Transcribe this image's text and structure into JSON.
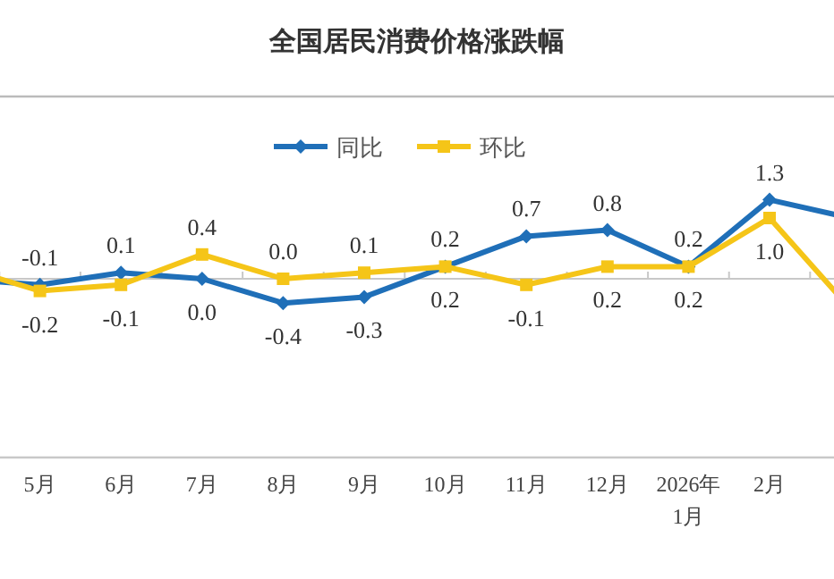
{
  "chart_data": {
    "type": "line",
    "title": "全国居民消费价格涨跌幅",
    "categories": [
      null,
      "5月",
      "6月",
      "7月",
      "8月",
      "9月",
      "10月",
      "11月",
      "12月",
      "2026年\n1月",
      "2月",
      null
    ],
    "series": [
      {
        "name": "同比",
        "color": "#1f6fb8",
        "marker": "diamond",
        "values": [
          0.0,
          -0.1,
          0.1,
          0.0,
          -0.4,
          -0.3,
          0.2,
          0.7,
          0.8,
          0.2,
          1.3,
          1.0
        ],
        "value_labels": [
          null,
          "-0.1",
          "0.1",
          "0.0",
          "-0.4",
          "-0.3",
          "0.2",
          "0.7",
          "0.8",
          "0.2",
          "1.3",
          null
        ]
      },
      {
        "name": "环比",
        "color": "#f5c518",
        "marker": "square",
        "values": [
          0.2,
          -0.2,
          -0.1,
          0.4,
          0.0,
          0.1,
          0.2,
          -0.1,
          0.2,
          0.2,
          1.0,
          -0.5
        ],
        "value_labels": [
          null,
          "-0.2",
          "-0.1",
          "0.4",
          "0.0",
          "0.1",
          "0.2",
          "-0.1",
          "0.2",
          "0.2",
          "1.0",
          null
        ]
      }
    ],
    "legend": "top"
  }
}
